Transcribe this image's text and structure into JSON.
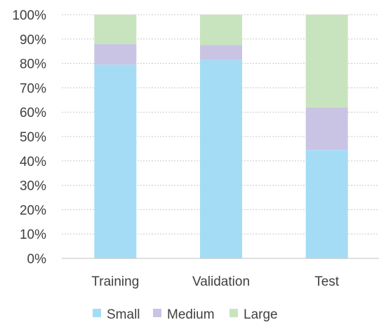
{
  "chart_data": {
    "type": "bar",
    "stacked": true,
    "percent": true,
    "categories": [
      "Training",
      "Validation",
      "Test"
    ],
    "series": [
      {
        "name": "Small",
        "color": "#a5dcf5",
        "values": [
          79.5,
          81.5,
          44.5
        ]
      },
      {
        "name": "Medium",
        "color": "#c9c4e4",
        "values": [
          8.5,
          6.0,
          17.5
        ]
      },
      {
        "name": "Large",
        "color": "#c8e4be",
        "values": [
          12.0,
          12.5,
          38.0
        ]
      }
    ],
    "ylim": [
      0,
      100
    ],
    "yticks": [
      "0%",
      "10%",
      "20%",
      "30%",
      "40%",
      "50%",
      "60%",
      "70%",
      "80%",
      "90%",
      "100%"
    ],
    "grid": true,
    "legend_position": "bottom"
  }
}
